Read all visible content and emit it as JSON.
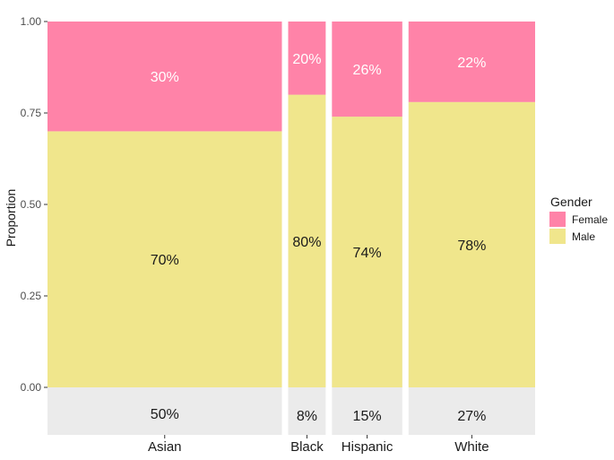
{
  "chart_data": {
    "type": "bar",
    "subtype": "mosaic",
    "categories": [
      "Asian",
      "Black",
      "Hispanic",
      "White"
    ],
    "category_share_labels": [
      "50%",
      "8%",
      "15%",
      "27%"
    ],
    "category_widths": [
      0.5,
      0.08,
      0.15,
      0.27
    ],
    "series": [
      {
        "name": "Male",
        "values": [
          0.7,
          0.8,
          0.74,
          0.78
        ],
        "labels": [
          "70%",
          "80%",
          "74%",
          "78%"
        ],
        "color": "#F0E68C"
      },
      {
        "name": "Female",
        "values": [
          0.3,
          0.2,
          0.26,
          0.22
        ],
        "labels": [
          "30%",
          "20%",
          "26%",
          "22%"
        ],
        "color": "#FF83A8"
      }
    ],
    "ylabel": "Proportion",
    "xlabel": "",
    "ylim": [
      0,
      1
    ],
    "yticks": [
      0,
      0.25,
      0.5,
      0.75,
      1
    ],
    "ytick_labels": [
      "0.00",
      "0.25",
      "0.50",
      "0.75",
      "1.00"
    ],
    "legend": {
      "title": "Gender",
      "position": "right",
      "entries": [
        "Female",
        "Male"
      ]
    },
    "grid": false,
    "panel_background": "#EBEBEB"
  }
}
